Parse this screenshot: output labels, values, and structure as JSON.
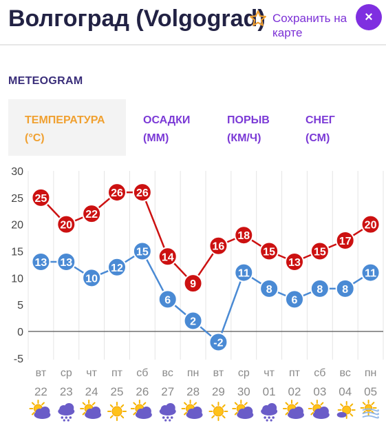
{
  "header": {
    "title": "Волгоград (Volgograd)",
    "save_label": "Сохранить на карте",
    "close_label": "×"
  },
  "section_title": "METEOGRAM",
  "tabs": [
    {
      "label": "ТЕМПЕРАТУРА",
      "unit": "(°C)",
      "active": true
    },
    {
      "label": "ОСАДКИ",
      "unit": "(ММ)",
      "active": false
    },
    {
      "label": "ПОРЫВ",
      "unit": "(КМ/Ч)",
      "active": false
    },
    {
      "label": "СНЕГ",
      "unit": "(СМ)",
      "active": false
    }
  ],
  "colors": {
    "accent": "#7b2fd6",
    "active_tab": "#f0a030",
    "max_series": "#cc1111",
    "min_series": "#4a8ad4",
    "text": "#222244"
  },
  "chart_data": {
    "type": "line",
    "yticks": [
      30,
      25,
      20,
      15,
      10,
      5,
      0,
      -5
    ],
    "ylim": [
      -5,
      30
    ],
    "grid": true,
    "weekdays": [
      "вт",
      "ср",
      "чт",
      "пт",
      "сб",
      "вс",
      "пн",
      "вт",
      "ср",
      "чт",
      "пт",
      "сб",
      "вс",
      "пн"
    ],
    "dates": [
      "22",
      "23",
      "24",
      "25",
      "26",
      "27",
      "28",
      "29",
      "30",
      "01",
      "02",
      "03",
      "04",
      "05"
    ],
    "series": [
      {
        "values": [
          25,
          20,
          22,
          26,
          26,
          14,
          9,
          16,
          18,
          15,
          13,
          15,
          17,
          20
        ]
      },
      {
        "values": [
          13,
          13,
          10,
          12,
          15,
          6,
          2,
          -2,
          11,
          8,
          6,
          8,
          8,
          11
        ]
      }
    ],
    "icons": [
      "partly-cloudy-icon",
      "rain-cloud-icon",
      "partly-cloudy-icon",
      "sun-icon",
      "partly-cloudy-icon",
      "rain-cloud-icon",
      "partly-cloudy-icon",
      "sun-icon",
      "partly-cloudy-icon",
      "rain-cloud-icon",
      "partly-cloudy-icon",
      "partly-cloudy-icon",
      "sun-cloud-icon",
      "wind-icon"
    ]
  }
}
